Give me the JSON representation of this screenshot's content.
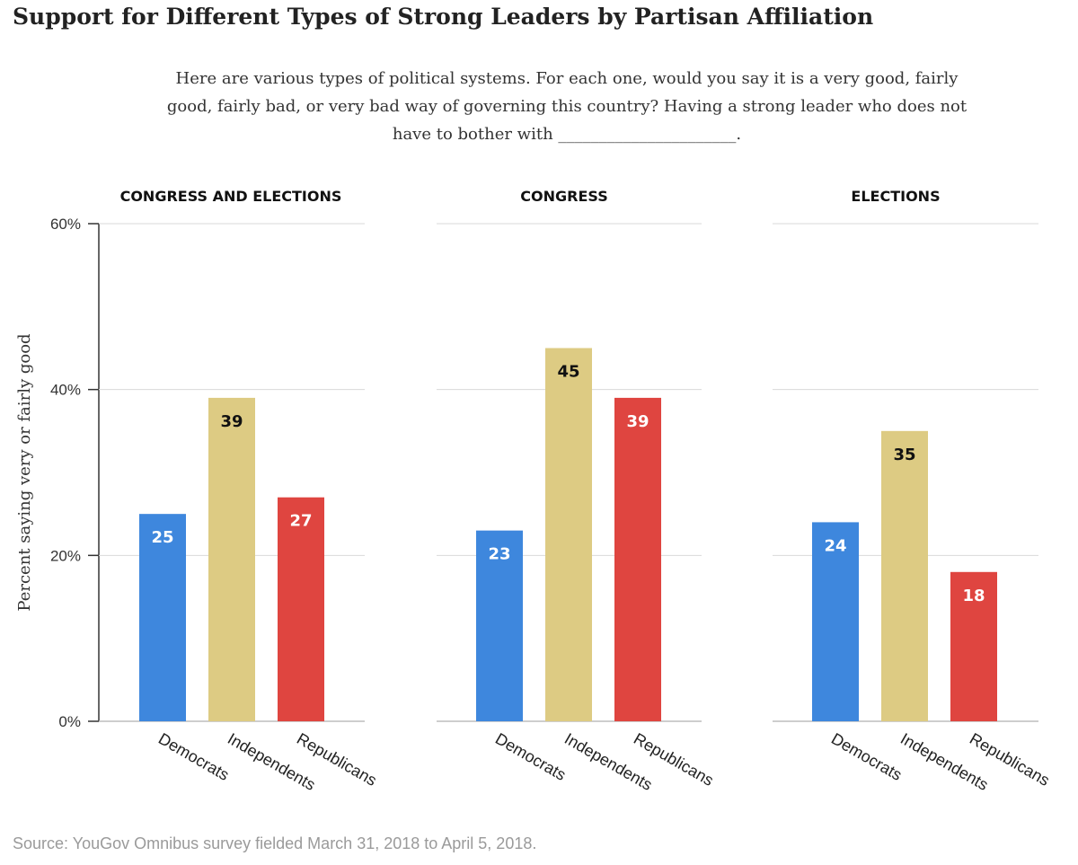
{
  "title": "Support for Different Types of Strong Leaders by Partisan Affiliation",
  "question": "Here are various types of political systems. For each one, would you say it is a very good, fairly good, fairly bad, or very bad way of governing this country? Having a strong leader who does not have to bother with ______________________.",
  "source": "Source: YouGov Omnibus survey fielded March 31, 2018 to April 5, 2018.",
  "chart_data": {
    "type": "bar",
    "ylabel": "Percent saying very or fairly good",
    "ylim": [
      0,
      60
    ],
    "yticks": [
      0,
      20,
      40,
      60
    ],
    "ytick_labels": [
      "0%",
      "20%",
      "40%",
      "60%"
    ],
    "grid": true,
    "categories": [
      "Democrats",
      "Independents",
      "Republicans"
    ],
    "colors": {
      "Democrats": "#3e87dd",
      "Independents": "#ddcb83",
      "Republicans": "#df4540"
    },
    "label_colors": {
      "Democrats": "#ffffff",
      "Independents": "#111111",
      "Republicans": "#ffffff"
    },
    "panels": [
      {
        "title": "CONGRESS AND ELECTIONS",
        "values": [
          25,
          39,
          27
        ]
      },
      {
        "title": "CONGRESS",
        "values": [
          23,
          45,
          39
        ]
      },
      {
        "title": "ELECTIONS",
        "values": [
          24,
          35,
          18
        ]
      }
    ]
  }
}
